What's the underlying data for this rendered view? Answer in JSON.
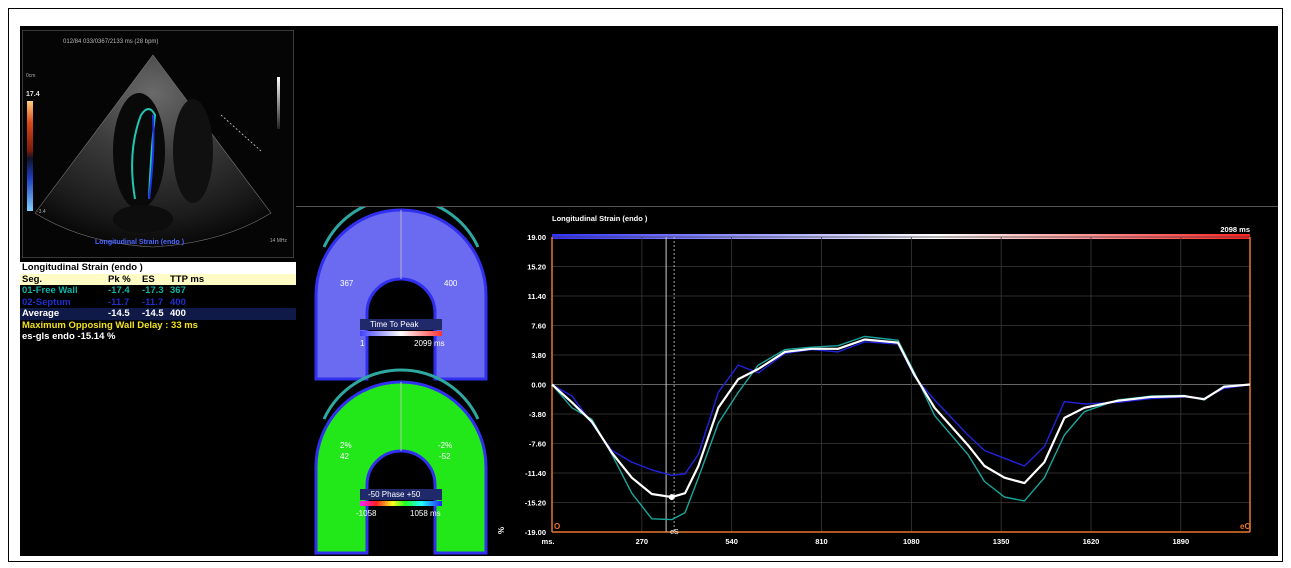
{
  "echo": {
    "header": "012/84  033/0367/2133 ms  (28 bpm)",
    "label": "Longitudinal Strain (endo )",
    "colorbar_value": "17.4",
    "colorbar_scale_top": "0cm",
    "colorbar_scale_bottom": "-3.4",
    "depth_label": "14 MHz"
  },
  "table": {
    "title": "Longitudinal Strain (endo )",
    "headers": [
      "Seg.",
      "Pk %",
      "ES",
      "TTP ms"
    ],
    "rows": [
      {
        "seg": "01-Free Wall",
        "pk": "-17.4",
        "es": "-17.3",
        "ttp": "367"
      },
      {
        "seg": "02-Septum",
        "pk": "-11.7",
        "es": "-11.7",
        "ttp": "400"
      },
      {
        "seg": "Average",
        "pk": "-14.5",
        "es": "-14.5",
        "ttp": "400"
      }
    ],
    "delay": "Maximum Opposing Wall Delay : 33 ms",
    "gls": "es-gls endo -15.14 %"
  },
  "bullseye": {
    "ttp_left": "367",
    "ttp_right": "400",
    "ttp_title": "Time To Peak",
    "ttp_min": "1",
    "ttp_max": "2099 ms",
    "phase_left_pct": "2%",
    "phase_left_val": "42",
    "phase_right_pct": "-2%",
    "phase_right_val": "-52",
    "phase_title": "-50  Phase  +50",
    "phase_min": "-1058",
    "phase_max": "1058 ms",
    "colors": {
      "ttp_fill": "#6b6bf2",
      "phase_fill": "#22e81a",
      "outline_top": "#2ea8a0",
      "outline_side": "#3030ee"
    }
  },
  "chart_data": {
    "type": "line",
    "title": "Longitudinal Strain (endo )",
    "time_label": "2098 ms",
    "ylabel": "%",
    "xlabel": "ms.",
    "yticks": [
      "19.00",
      "15.20",
      "11.40",
      "7.60",
      "3.80",
      "0.00",
      "-3.80",
      "-7.60",
      "-11.40",
      "-15.20",
      "-19.00"
    ],
    "xticks": [
      "ms.",
      "270",
      "540",
      "810",
      "1080",
      "1350",
      "1620",
      "1890"
    ],
    "ylim": [
      -19,
      19
    ],
    "xlim": [
      0,
      2098
    ],
    "es_marker_ms": 367,
    "es_label": "eS",
    "start_label": "O",
    "end_label": "eO",
    "grid": true,
    "series": [
      {
        "name": "01-Free Wall",
        "color": "#1aa79c",
        "x": [
          0,
          60,
          120,
          180,
          240,
          300,
          360,
          400,
          440,
          500,
          560,
          620,
          700,
          780,
          860,
          940,
          1040,
          1090,
          1150,
          1250,
          1300,
          1360,
          1420,
          1480,
          1540,
          1600,
          1700,
          1800,
          1900,
          1960,
          2020,
          2098
        ],
        "y": [
          0,
          -3,
          -4.5,
          -9,
          -14,
          -17.3,
          -17.4,
          -16.5,
          -12,
          -5,
          -1,
          2.5,
          4.5,
          4.8,
          5,
          6.2,
          5.7,
          1.5,
          -4,
          -9,
          -12.5,
          -14.5,
          -15,
          -12,
          -6.5,
          -3.5,
          -2,
          -1.5,
          -1.4,
          -2,
          -0.2,
          0
        ]
      },
      {
        "name": "02-Septum",
        "color": "#2222dd",
        "x": [
          0,
          60,
          120,
          180,
          240,
          300,
          360,
          400,
          440,
          500,
          560,
          620,
          700,
          780,
          860,
          940,
          1040,
          1090,
          1150,
          1250,
          1300,
          1360,
          1420,
          1480,
          1540,
          1600,
          1700,
          1800,
          1900,
          1960,
          2020,
          2098
        ],
        "y": [
          0,
          -1.5,
          -5,
          -8.5,
          -10,
          -11,
          -11.7,
          -11.5,
          -9,
          -1,
          2.5,
          1.5,
          4,
          4.5,
          4.2,
          5.5,
          5.2,
          1,
          -2,
          -6.5,
          -8.5,
          -9.5,
          -10.5,
          -8,
          -2.2,
          -2.5,
          -2.3,
          -1.8,
          -1.6,
          -1.8,
          -0.5,
          0
        ]
      },
      {
        "name": "Average",
        "color": "#ffffff",
        "x": [
          0,
          60,
          120,
          180,
          240,
          300,
          360,
          400,
          440,
          500,
          560,
          620,
          700,
          780,
          860,
          940,
          1040,
          1090,
          1150,
          1250,
          1300,
          1360,
          1420,
          1480,
          1540,
          1600,
          1700,
          1800,
          1900,
          1960,
          2020,
          2098
        ],
        "y": [
          0,
          -2.3,
          -4.8,
          -8.8,
          -12,
          -14.1,
          -14.5,
          -14,
          -10.5,
          -3,
          0.7,
          2,
          4.2,
          4.6,
          4.6,
          5.8,
          5.4,
          1.2,
          -3,
          -7.8,
          -10.5,
          -12,
          -12.7,
          -10,
          -4.3,
          -3,
          -2.1,
          -1.6,
          -1.5,
          -1.9,
          -0.3,
          0
        ]
      }
    ]
  }
}
